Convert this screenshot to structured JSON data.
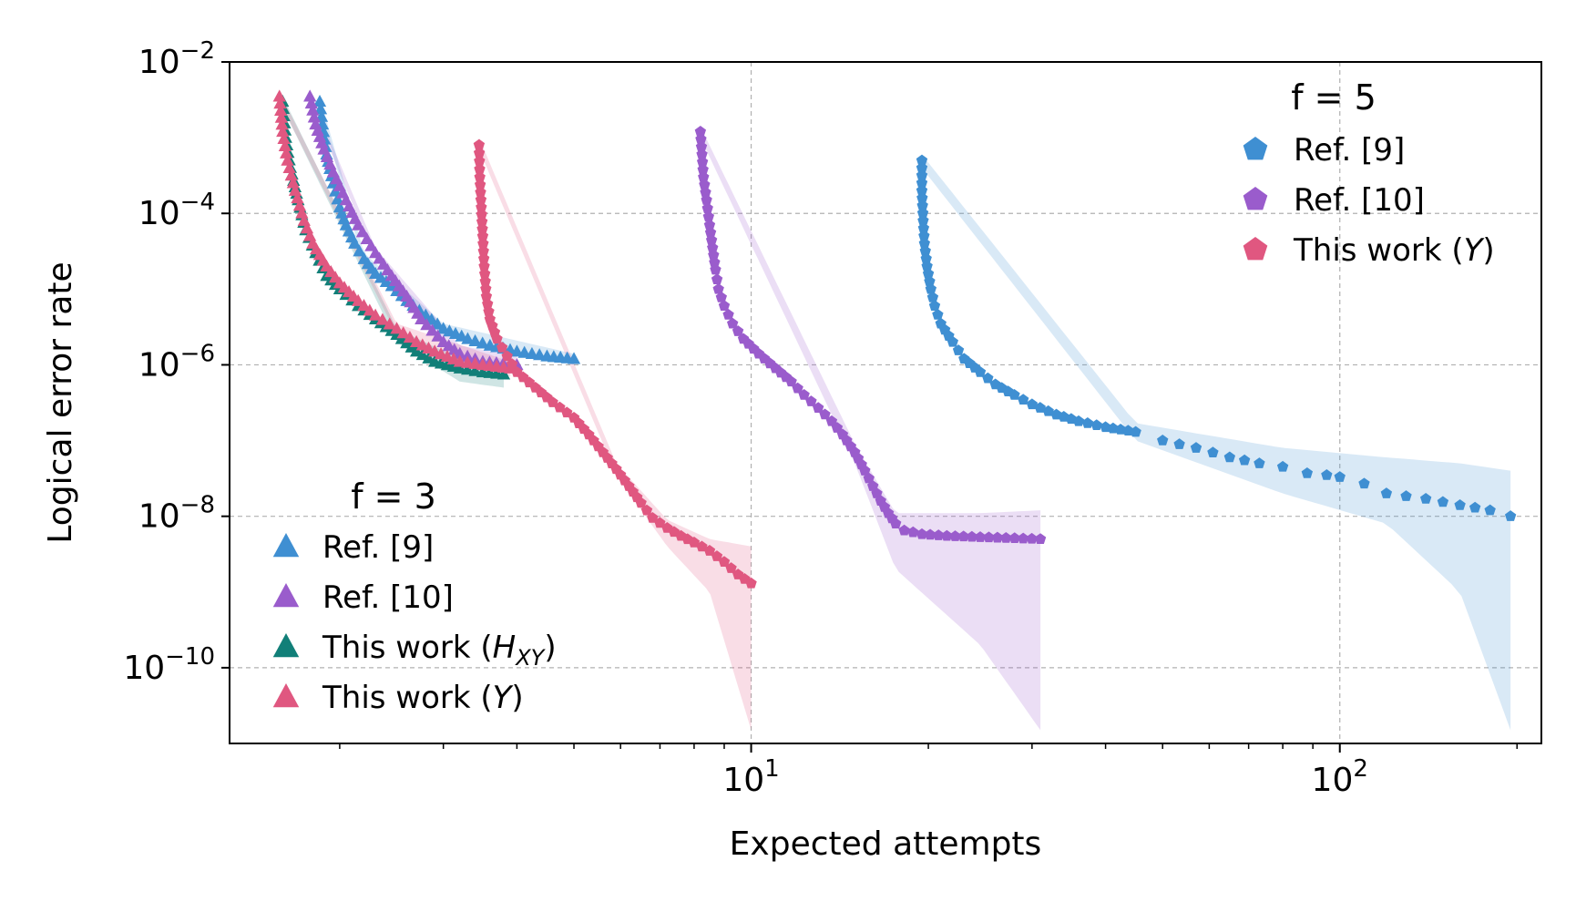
{
  "chart_data": {
    "type": "scatter",
    "xlabel": "Expected attempts",
    "ylabel": "Logical error rate",
    "xscale": "log",
    "yscale": "log",
    "xlim": [
      1.3,
      220
    ],
    "ylim": [
      1e-11,
      0.01
    ],
    "grid": true,
    "x_ticks": [
      {
        "value": 10,
        "base": "10",
        "exp": "1"
      },
      {
        "value": 100,
        "base": "10",
        "exp": "2"
      }
    ],
    "y_ticks": [
      {
        "value": 0.01,
        "base": "10",
        "exp": "−2"
      },
      {
        "value": 0.0001,
        "base": "10",
        "exp": "−4"
      },
      {
        "value": 1e-06,
        "base": "10",
        "exp": "−6"
      },
      {
        "value": 1e-08,
        "base": "10",
        "exp": "−8"
      },
      {
        "value": 1e-10,
        "base": "10",
        "exp": "−10"
      }
    ],
    "legends": [
      {
        "title": "f = 3",
        "placement": "lower-left",
        "marker": "triangle",
        "entries": [
          {
            "text": "Ref. [9]",
            "color": "#3f8fd2"
          },
          {
            "text": "Ref. [10]",
            "color": "#9a5ccc"
          },
          {
            "text": "This work (",
            "math": "H",
            "sub": "XY",
            "tail": ")",
            "color": "#117f78"
          },
          {
            "text": "This work (",
            "math": "Y",
            "sub": "",
            "tail": ")",
            "color": "#e05780"
          }
        ]
      },
      {
        "title": "f = 5",
        "placement": "upper-right",
        "marker": "pentagon",
        "entries": [
          {
            "text": "Ref. [9]",
            "color": "#3f8fd2"
          },
          {
            "text": "Ref. [10]",
            "color": "#9a5ccc"
          },
          {
            "text": "This work (",
            "math": "Y",
            "sub": "",
            "tail": ")",
            "color": "#e05780"
          }
        ]
      }
    ],
    "series": [
      {
        "f": 3,
        "color": "#3f8fd2",
        "marker": "triangle",
        "points": [
          [
            1.85,
            0.003
          ],
          [
            1.87,
            0.0015
          ],
          [
            1.9,
            0.0006
          ],
          [
            1.95,
            0.00025
          ],
          [
            2.0,
            0.00012
          ],
          [
            2.05,
            7e-05
          ],
          [
            2.12,
            4e-05
          ],
          [
            2.2,
            2.5e-05
          ],
          [
            2.3,
            1.6e-05
          ],
          [
            2.45,
            1.1e-05
          ],
          [
            2.6,
            7e-06
          ],
          [
            2.8,
            4.5e-06
          ],
          [
            3.0,
            3e-06
          ],
          [
            3.3,
            2.2e-06
          ],
          [
            3.6,
            1.8e-06
          ],
          [
            4.0,
            1.5e-06
          ],
          [
            4.5,
            1.3e-06
          ],
          [
            5.0,
            1.2e-06
          ]
        ],
        "band": [
          [
            1.85,
            0.0035,
            0.0025
          ],
          [
            2.2,
            3e-05,
            2e-05
          ],
          [
            3.0,
            3.5e-06,
            2.5e-06
          ],
          [
            5.0,
            1.4e-06,
            1e-06
          ]
        ]
      },
      {
        "f": 3,
        "color": "#9a5ccc",
        "marker": "triangle",
        "points": [
          [
            1.78,
            0.0035
          ],
          [
            1.82,
            0.0015
          ],
          [
            1.88,
            0.0007
          ],
          [
            1.95,
            0.00035
          ],
          [
            2.05,
            0.00015
          ],
          [
            2.15,
            7e-05
          ],
          [
            2.3,
            3e-05
          ],
          [
            2.45,
            1.5e-05
          ],
          [
            2.6,
            8e-06
          ],
          [
            2.75,
            4e-06
          ],
          [
            3.0,
            2e-06
          ],
          [
            3.2,
            1.4e-06
          ],
          [
            3.5,
            1.1e-06
          ],
          [
            4.0,
            1e-06
          ]
        ],
        "band": [
          [
            1.78,
            0.004,
            0.003
          ],
          [
            2.3,
            3.5e-05,
            2.5e-05
          ],
          [
            3.2,
            1.8e-06,
            1.1e-06
          ],
          [
            4.0,
            1.3e-06,
            8e-07
          ]
        ]
      },
      {
        "f": 3,
        "color": "#117f78",
        "marker": "triangle",
        "points": [
          [
            1.6,
            0.003
          ],
          [
            1.62,
            0.001
          ],
          [
            1.65,
            0.0004
          ],
          [
            1.7,
            0.00015
          ],
          [
            1.75,
            6e-05
          ],
          [
            1.82,
            3e-05
          ],
          [
            1.9,
            1.5e-05
          ],
          [
            2.0,
            1e-05
          ],
          [
            2.15,
            6e-06
          ],
          [
            2.3,
            4e-06
          ],
          [
            2.5,
            2.5e-06
          ],
          [
            2.7,
            1.5e-06
          ],
          [
            2.9,
            1.1e-06
          ],
          [
            3.2,
            9e-07
          ],
          [
            3.5,
            8e-07
          ],
          [
            3.8,
            7.5e-07
          ]
        ],
        "band": [
          [
            1.6,
            0.0035,
            0.0025
          ],
          [
            2.5,
            3e-06,
            2e-06
          ],
          [
            3.2,
            1.2e-06,
            6e-07
          ],
          [
            3.8,
            1e-06,
            5e-07
          ]
        ]
      },
      {
        "f": 3,
        "color": "#e05780",
        "marker": "triangle",
        "points": [
          [
            1.58,
            0.0035
          ],
          [
            1.6,
            0.0012
          ],
          [
            1.63,
            0.0005
          ],
          [
            1.68,
            0.0002
          ],
          [
            1.74,
            8e-05
          ],
          [
            1.8,
            4e-05
          ],
          [
            1.9,
            2e-05
          ],
          [
            2.0,
            1.2e-05
          ],
          [
            2.15,
            7e-06
          ],
          [
            2.3,
            4.5e-06
          ],
          [
            2.5,
            3e-06
          ],
          [
            2.7,
            2e-06
          ],
          [
            2.9,
            1.5e-06
          ],
          [
            3.2,
            1.1e-06
          ],
          [
            3.5,
            1e-06
          ],
          [
            3.9,
            9e-07
          ]
        ],
        "band": [
          [
            1.58,
            0.004,
            0.003
          ],
          [
            2.5,
            3.5e-06,
            2.5e-06
          ],
          [
            3.9,
            1.1e-06,
            7e-07
          ]
        ]
      },
      {
        "f": 5,
        "color": "#3f8fd2",
        "marker": "pentagon",
        "points": [
          [
            19.5,
            0.0005
          ],
          [
            19.5,
            0.0002
          ],
          [
            19.6,
            8e-05
          ],
          [
            19.7,
            4e-05
          ],
          [
            19.9,
            2e-05
          ],
          [
            20.2,
            1e-05
          ],
          [
            20.5,
            6e-06
          ],
          [
            21,
            3.5e-06
          ],
          [
            22,
            2e-06
          ],
          [
            23,
            1.2e-06
          ],
          [
            24.5,
            8e-07
          ],
          [
            26,
            5.5e-07
          ],
          [
            28,
            4e-07
          ],
          [
            30,
            3e-07
          ],
          [
            33,
            2.2e-07
          ],
          [
            36,
            1.8e-07
          ],
          [
            40,
            1.5e-07
          ],
          [
            45,
            1.3e-07
          ],
          [
            50,
            1e-07
          ],
          [
            57,
            8e-08
          ],
          [
            65,
            6e-08
          ],
          [
            73,
            5e-08
          ],
          [
            80,
            4.5e-08
          ],
          [
            88,
            3.7e-08
          ],
          [
            95,
            3.5e-08
          ],
          [
            100,
            3.3e-08
          ],
          [
            110,
            2.7e-08
          ],
          [
            120,
            2e-08
          ],
          [
            140,
            1.7e-08
          ],
          [
            160,
            1.4e-08
          ],
          [
            180,
            1.2e-08
          ],
          [
            195,
            1e-08
          ]
        ],
        "band": [
          [
            19.5,
            0.0006,
            0.0004
          ],
          [
            45,
            1.7e-07,
            1e-07
          ],
          [
            80,
            8e-08,
            2e-08
          ],
          [
            120,
            6e-08,
            8e-09
          ],
          [
            160,
            5e-08,
            1e-09
          ],
          [
            195,
            4e-08,
            1.5e-11
          ]
        ]
      },
      {
        "f": 5,
        "color": "#9a5ccc",
        "marker": "pentagon",
        "points": [
          [
            8.2,
            0.0012
          ],
          [
            8.25,
            0.0006
          ],
          [
            8.3,
            0.0003
          ],
          [
            8.4,
            0.00015
          ],
          [
            8.5,
            7e-05
          ],
          [
            8.6,
            3.5e-05
          ],
          [
            8.7,
            1.8e-05
          ],
          [
            8.8,
            1e-05
          ],
          [
            9.0,
            6e-06
          ],
          [
            9.3,
            3.5e-06
          ],
          [
            9.7,
            2.2e-06
          ],
          [
            10.3,
            1.4e-06
          ],
          [
            11,
            9e-07
          ],
          [
            11.7,
            6e-07
          ],
          [
            12.3,
            4e-07
          ],
          [
            13,
            2.7e-07
          ],
          [
            13.7,
            1.8e-07
          ],
          [
            14.3,
            1.2e-07
          ],
          [
            15,
            7e-08
          ],
          [
            15.6,
            4e-08
          ],
          [
            16.1,
            2.5e-08
          ],
          [
            16.6,
            1.6e-08
          ],
          [
            17.1,
            1.1e-08
          ],
          [
            17.6,
            8e-09
          ],
          [
            18.2,
            6.5e-09
          ],
          [
            19.5,
            5.8e-09
          ],
          [
            21.5,
            5.5e-09
          ],
          [
            24.5,
            5.3e-09
          ],
          [
            31,
            5e-09
          ]
        ],
        "band": [
          [
            8.2,
            0.0014,
            0.001
          ],
          [
            15,
            9e-08,
            5e-08
          ],
          [
            17.6,
            1.1e-08,
            2e-09
          ],
          [
            24.5,
            1.1e-08,
            2e-10
          ],
          [
            31,
            1.2e-08,
            1.5e-11
          ]
        ]
      },
      {
        "f": 5,
        "color": "#e05780",
        "marker": "pentagon",
        "points": [
          [
            3.45,
            0.0008
          ],
          [
            3.46,
            0.0003
          ],
          [
            3.48,
            0.00012
          ],
          [
            3.5,
            5e-05
          ],
          [
            3.52,
            2e-05
          ],
          [
            3.55,
            8e-06
          ],
          [
            3.6,
            4e-06
          ],
          [
            3.7,
            2.2e-06
          ],
          [
            3.85,
            1.3e-06
          ],
          [
            4.0,
            8e-07
          ],
          [
            4.3,
            5e-07
          ],
          [
            4.6,
            3.2e-07
          ],
          [
            5.0,
            2e-07
          ],
          [
            5.3,
            1.2e-07
          ],
          [
            5.6,
            7e-08
          ],
          [
            5.9,
            4.2e-08
          ],
          [
            6.2,
            2.5e-08
          ],
          [
            6.5,
            1.5e-08
          ],
          [
            6.8,
            9.5e-09
          ],
          [
            7.2,
            7e-09
          ],
          [
            7.6,
            5.5e-09
          ],
          [
            8.0,
            4.5e-09
          ],
          [
            8.5,
            3.5e-09
          ],
          [
            9.0,
            2.5e-09
          ],
          [
            9.5,
            1.7e-09
          ],
          [
            10.0,
            1.3e-09
          ]
        ],
        "band": [
          [
            3.45,
            0.001,
            0.0007
          ],
          [
            5.9,
            5e-08,
            3.5e-08
          ],
          [
            7.2,
            9e-09,
            4e-09
          ],
          [
            8.5,
            5e-09,
            1e-09
          ],
          [
            10,
            4e-09,
            1.5e-11
          ]
        ]
      }
    ]
  }
}
